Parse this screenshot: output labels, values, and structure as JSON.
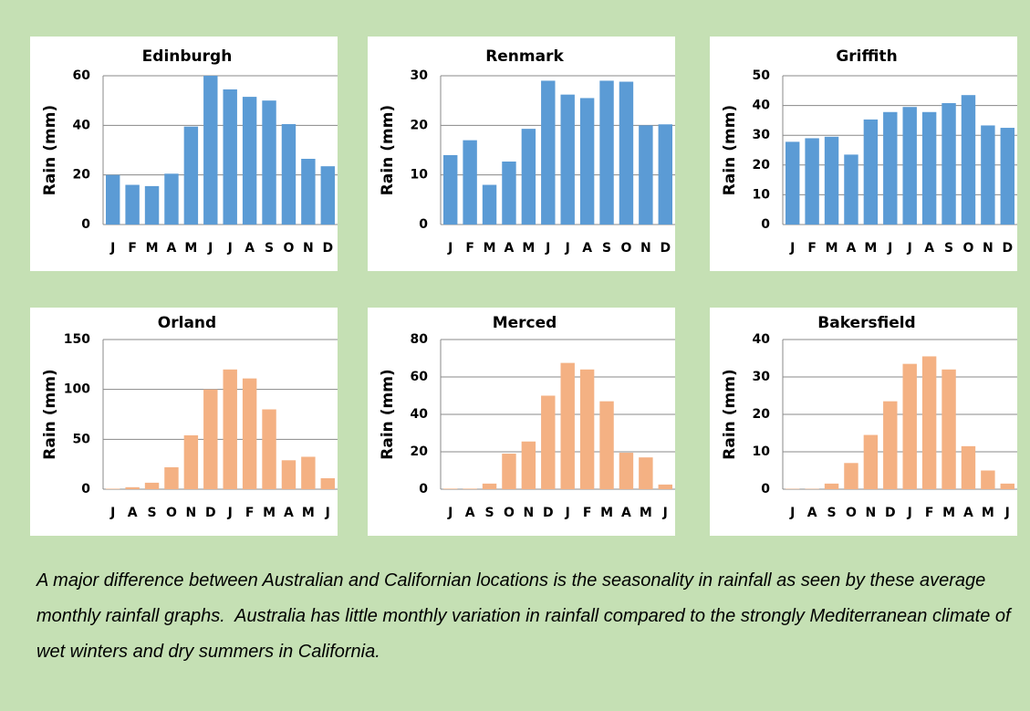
{
  "chart_data": [
    {
      "type": "bar",
      "title": "Edinburgh",
      "y_label": "Rain (mm)",
      "color": "#5b9bd5",
      "grid": true,
      "categories": [
        "J",
        "F",
        "M",
        "A",
        "M",
        "J",
        "J",
        "A",
        "S",
        "O",
        "N",
        "D"
      ],
      "values": [
        20,
        16,
        15.5,
        20.5,
        39.5,
        60,
        54.5,
        51.5,
        50,
        40.5,
        26.5,
        23.5
      ],
      "ylim": [
        0,
        60
      ],
      "yticks": [
        0,
        20,
        40,
        60
      ]
    },
    {
      "type": "bar",
      "title": "Renmark",
      "y_label": "Rain (mm)",
      "color": "#5b9bd5",
      "grid": true,
      "categories": [
        "J",
        "F",
        "M",
        "A",
        "M",
        "J",
        "J",
        "A",
        "S",
        "O",
        "N",
        "D"
      ],
      "values": [
        14,
        17,
        8,
        12.7,
        19.3,
        29,
        26.2,
        25.5,
        29,
        28.8,
        20,
        20.2
      ],
      "ylim": [
        0,
        30
      ],
      "yticks": [
        0,
        10,
        20,
        30
      ]
    },
    {
      "type": "bar",
      "title": "Griffith",
      "y_label": "Rain (mm)",
      "color": "#5b9bd5",
      "grid": true,
      "categories": [
        "J",
        "F",
        "M",
        "A",
        "M",
        "J",
        "J",
        "A",
        "S",
        "O",
        "N",
        "D"
      ],
      "values": [
        27.8,
        29,
        29.5,
        23.5,
        35.3,
        37.8,
        39.5,
        37.8,
        40.8,
        43.5,
        33.3,
        32.5
      ],
      "ylim": [
        0,
        50
      ],
      "yticks": [
        0,
        10,
        20,
        30,
        40,
        50
      ]
    },
    {
      "type": "bar",
      "title": "Orland",
      "y_label": "Rain (mm)",
      "color": "#f4b183",
      "grid": true,
      "categories": [
        "J",
        "A",
        "S",
        "O",
        "N",
        "D",
        "J",
        "F",
        "M",
        "A",
        "M",
        "J"
      ],
      "values": [
        0.5,
        2,
        6.5,
        22,
        54,
        100,
        120,
        111,
        80,
        29,
        32.5,
        11
      ],
      "ylim": [
        0,
        150
      ],
      "yticks": [
        0,
        50,
        100,
        150
      ]
    },
    {
      "type": "bar",
      "title": "Merced",
      "y_label": "Rain (mm)",
      "color": "#f4b183",
      "grid": true,
      "categories": [
        "J",
        "A",
        "S",
        "O",
        "N",
        "D",
        "J",
        "F",
        "M",
        "A",
        "M",
        "J"
      ],
      "values": [
        0.3,
        0.3,
        3,
        19,
        25.5,
        50,
        67.5,
        64,
        47,
        19.5,
        17,
        2.5
      ],
      "ylim": [
        0,
        80
      ],
      "yticks": [
        0,
        20,
        40,
        60,
        80
      ]
    },
    {
      "type": "bar",
      "title": "Bakersfield",
      "y_label": "Rain (mm)",
      "color": "#f4b183",
      "grid": true,
      "categories": [
        "J",
        "A",
        "S",
        "O",
        "N",
        "D",
        "J",
        "F",
        "M",
        "A",
        "M",
        "J"
      ],
      "values": [
        0.1,
        0.1,
        1.5,
        7,
        14.5,
        23.5,
        33.5,
        35.5,
        32,
        11.5,
        5,
        1.5
      ],
      "ylim": [
        0,
        40
      ],
      "yticks": [
        0,
        10,
        20,
        30,
        40
      ]
    }
  ],
  "caption": "A major difference between Australian and Californian locations is the seasonality in rainfall as seen by these average monthly rainfall graphs.  Australia has little monthly variation in rainfall compared to the strongly Mediterranean climate of wet winters and dry summers in California."
}
